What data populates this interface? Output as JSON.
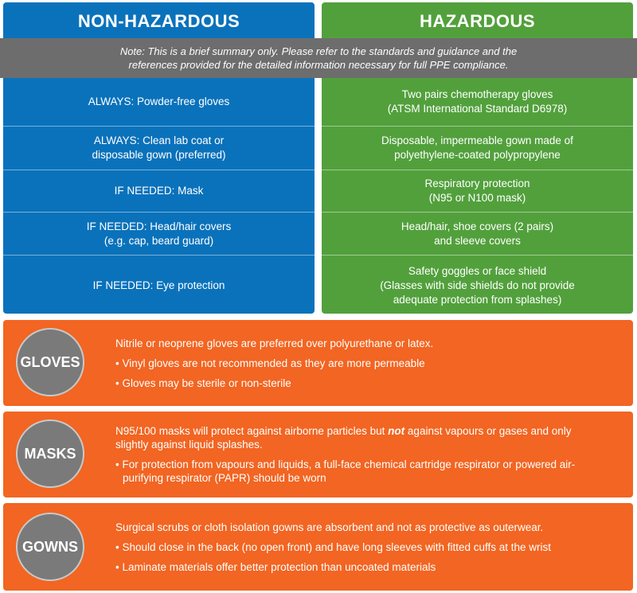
{
  "colors": {
    "non_hazardous": "#0a72bb",
    "hazardous": "#52a03c",
    "note": "#6d6d6d",
    "ppe": "#f26522",
    "circle": "#7a7a7a"
  },
  "non_hazardous": {
    "title": "NON-HAZARDOUS",
    "rows": [
      "ALWAYS: Powder-free gloves",
      "ALWAYS: Clean lab coat or\ndisposable gown (preferred)",
      "IF NEEDED: Mask",
      "IF NEEDED: Head/hair covers\n(e.g. cap, beard guard)",
      "IF NEEDED: Eye protection"
    ]
  },
  "hazardous": {
    "title": "HAZARDOUS",
    "rows": [
      "Two pairs chemotherapy gloves\n(ATSM International Standard D6978)",
      "Disposable, impermeable gown made of\npolyethylene-coated polypropylene",
      "Respiratory protection\n(N95 or N100 mask)",
      "Head/hair, shoe covers (2 pairs)\nand sleeve covers",
      "Safety goggles or face shield\n(Glasses with side shields do not provide\nadequate protection from splashes)"
    ]
  },
  "note": {
    "line1": "Note: This is a brief summary only.  Please refer to the standards and guidance and the",
    "line2": "references provided for the detailed information necessary for full PPE compliance."
  },
  "gloves": {
    "label": "GLOVES",
    "intro": "Nitrile or neoprene gloves are preferred over polyurethane or latex.",
    "bullets": [
      "• Vinyl gloves are not recommended as they are more permeable",
      "• Gloves may be sterile or non-sterile"
    ]
  },
  "masks": {
    "label": "MASKS",
    "intro_a": "N95/100 masks will protect against airborne particles but ",
    "intro_bold": "not",
    "intro_b": " against vapours or gases and only slightly against liquid splashes.",
    "bullets": [
      "• For protection from vapours and liquids, a full-face chemical cartridge respirator or powered air-purifying respirator (PAPR) should be worn"
    ]
  },
  "gowns": {
    "label": "GOWNS",
    "intro": "Surgical scrubs or cloth isolation gowns are absorbent and not as protective as outerwear.",
    "bullets": [
      "• Should close in the back (no open front) and have long sleeves with fitted cuffs at the wrist",
      "• Laminate materials offer better protection than uncoated materials"
    ]
  }
}
